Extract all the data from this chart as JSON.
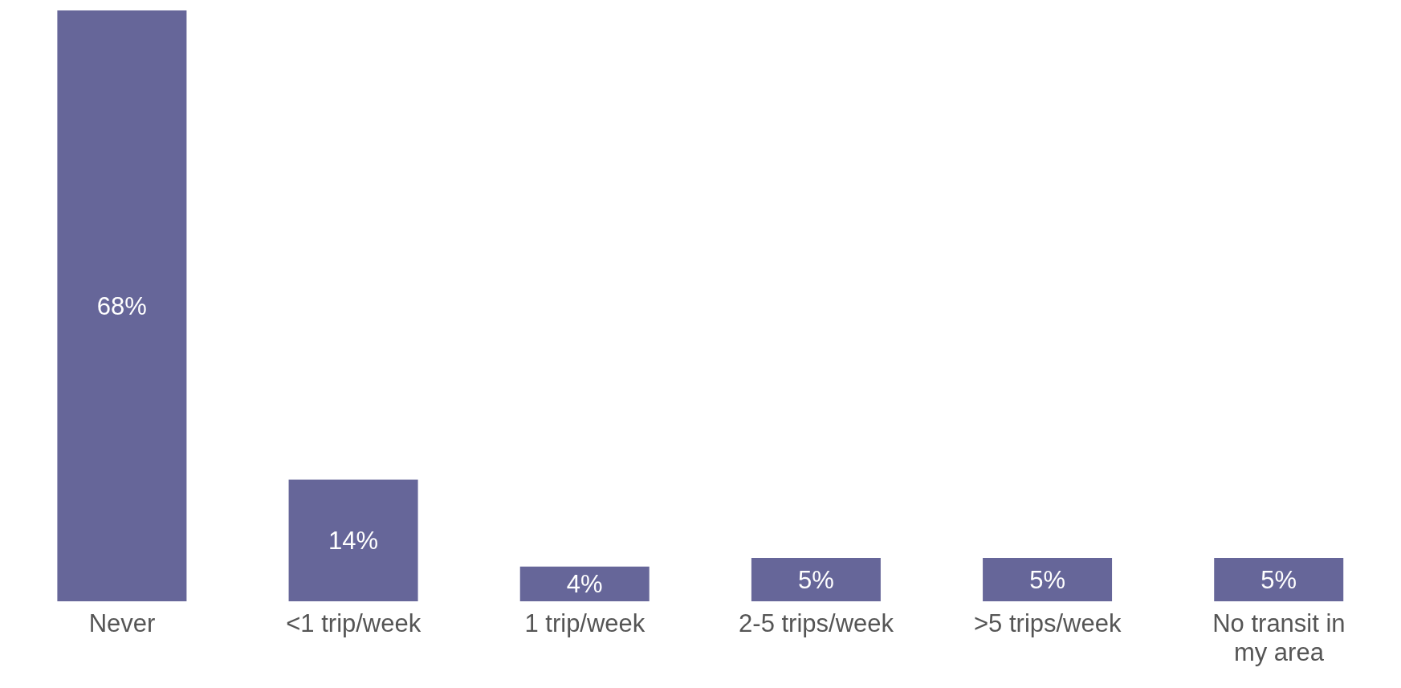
{
  "chart_data": {
    "type": "bar",
    "categories": [
      "Never",
      "<1 trip/week",
      "1 trip/week",
      "2-5 trips/week",
      ">5 trips/week",
      "No transit in my area"
    ],
    "values": [
      68,
      14,
      4,
      5,
      5,
      5
    ],
    "value_labels": [
      "68%",
      "14%",
      "4%",
      "5%",
      "5%",
      "5%"
    ],
    "color": "#666699"
  }
}
